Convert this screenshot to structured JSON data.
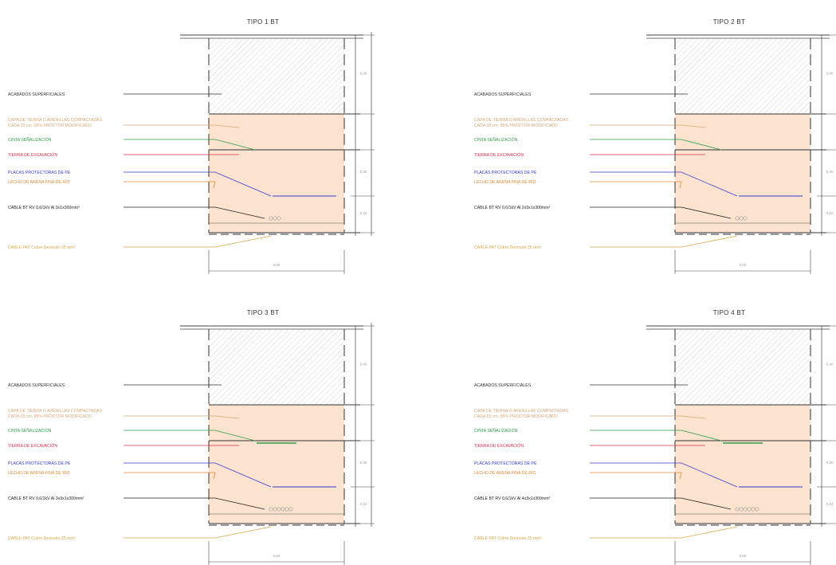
{
  "panels": [
    {
      "title": "TIPO 1 BT",
      "labels": {
        "acabados": "ACABADOS SUPERFICIALES",
        "tierra_1": "CAPA DE TIERRA O ARENILLAS COMPACTADAS",
        "tierra_2": "CADA 25 cm. 95% PROCTOR MODIFICADO",
        "cinta": "CINTA SEÑALIZACIÓN",
        "tierra_exc": "TIERRA DE EXCAVACIÓN",
        "placas": "PLACAS PROTECTORAS DE PE",
        "arena": "LECHO DE ARENA FINA DE RÍO",
        "cable_bt": "CABLE BT RV 0,6/1kV Al 3x1x300mm²",
        "cable_pat": "CABLE PAT Cobre Desnudo 35 mm²"
      },
      "dims": {
        "width": "0,60",
        "h_top": "0,40",
        "h_mid": "0,30",
        "h_bot": "0,10"
      }
    },
    {
      "title": "TIPO 2 BT",
      "labels": {
        "acabados": "ACABADOS SUPERFICIALES",
        "tierra_1": "CAPA DE TIERRA O ARENILLAS COMPACTADAS",
        "tierra_2": "CADA 25 cm. 95% PROCTOR MODIFICADO",
        "cinta": "CINTA SEÑALIZACIÓN",
        "tierra_exc": "TIERRA DE EXCAVACIÓN",
        "placas": "PLACAS PROTECTORAS DE PE",
        "arena": "LECHO DE ARENA FINA DE RÍO",
        "cable_bt": "CABLE BT RV 0,6/1kV Al 2x3x1x300mm²",
        "cable_pat": "CABLE PAT Cobre Desnudo 35 mm²"
      },
      "dims": {
        "width": "0,60",
        "h_top": "0,40",
        "h_mid": "0,30",
        "h_bot": "0,10"
      }
    },
    {
      "title": "TIPO 3 BT",
      "labels": {
        "acabados": "ACABADOS SUPERFICIALES",
        "tierra_1": "CAPA DE TIERRA O ARENILLAS COMPACTADAS",
        "tierra_2": "CADA 25 cm. 95% PROCTOR MODIFICADO",
        "cinta": "CINTA SEÑALIZACIÓN",
        "tierra_exc": "TIERRA DE EXCAVACIÓN",
        "placas": "PLACAS PROTECTORAS DE PE",
        "arena": "LECHO DE ARENA FINA DE RÍO",
        "cable_bt": "CABLE BT RV 0,6/1kV Al 3x3x1x300mm²",
        "cable_pat": "CABLE PAT Cobre Desnudo 35 mm²"
      },
      "dims": {
        "width": "0,60",
        "h_top": "0,40",
        "h_mid": "0,30",
        "h_bot": "0,10"
      }
    },
    {
      "title": "TIPO 4 BT",
      "labels": {
        "acabados": "ACABADOS SUPERFICIALES",
        "tierra_1": "CAPA DE TIERRA O ARENILLAS COMPACTADAS",
        "tierra_2": "CADA 25 cm. 95% PROCTOR MODIFICADO",
        "cinta": "CINTA SEÑALIZACIÓN",
        "tierra_exc": "TIERRA DE EXCAVACIÓN",
        "placas": "PLACAS PROTECTORAS DE PE",
        "arena": "LECHO DE ARENA FINA DE RÍO",
        "cable_bt": "CABLE BT RV 0,6/1kV Al 4x3x1x300mm²",
        "cable_pat": "CABLE PAT Cobre Desnudo 35 mm²"
      },
      "dims": {
        "width": "0,60",
        "h_top": "0,40",
        "h_mid": "0,30",
        "h_bot": "0,10"
      }
    }
  ],
  "colors": {
    "acabados": "#333333",
    "tierra": "#d9a878",
    "cinta": "#2e9e4a",
    "tierra_exc": "#d9304f",
    "placas": "#3a3ad4",
    "arena": "#e08a3a",
    "cable_bt": "#222222",
    "cable_pat": "#d9a84a",
    "fill_soil": "#fbe3cf",
    "hatch": "#c8c8c8"
  }
}
